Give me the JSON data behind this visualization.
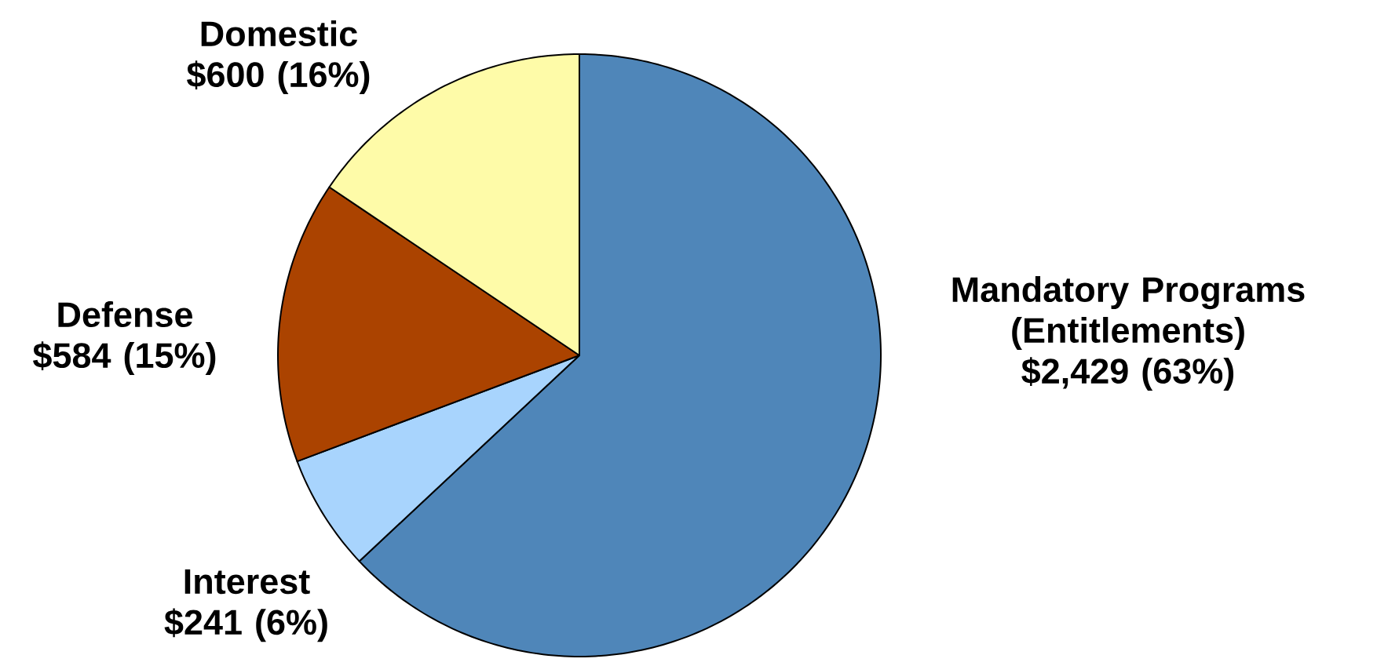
{
  "chart_data": {
    "type": "pie",
    "categories": [
      "Mandatory Programs (Entitlements)",
      "Interest",
      "Defense",
      "Domestic"
    ],
    "values": [
      2429,
      241,
      584,
      600
    ],
    "value_labels": [
      "$2,429 (63%)",
      "$241 (6%)",
      "$584 (15%)",
      "$600 (16%)"
    ],
    "colors": [
      "#4f86b9",
      "#a8d4fd",
      "#ab4300",
      "#fefba8"
    ]
  }
}
